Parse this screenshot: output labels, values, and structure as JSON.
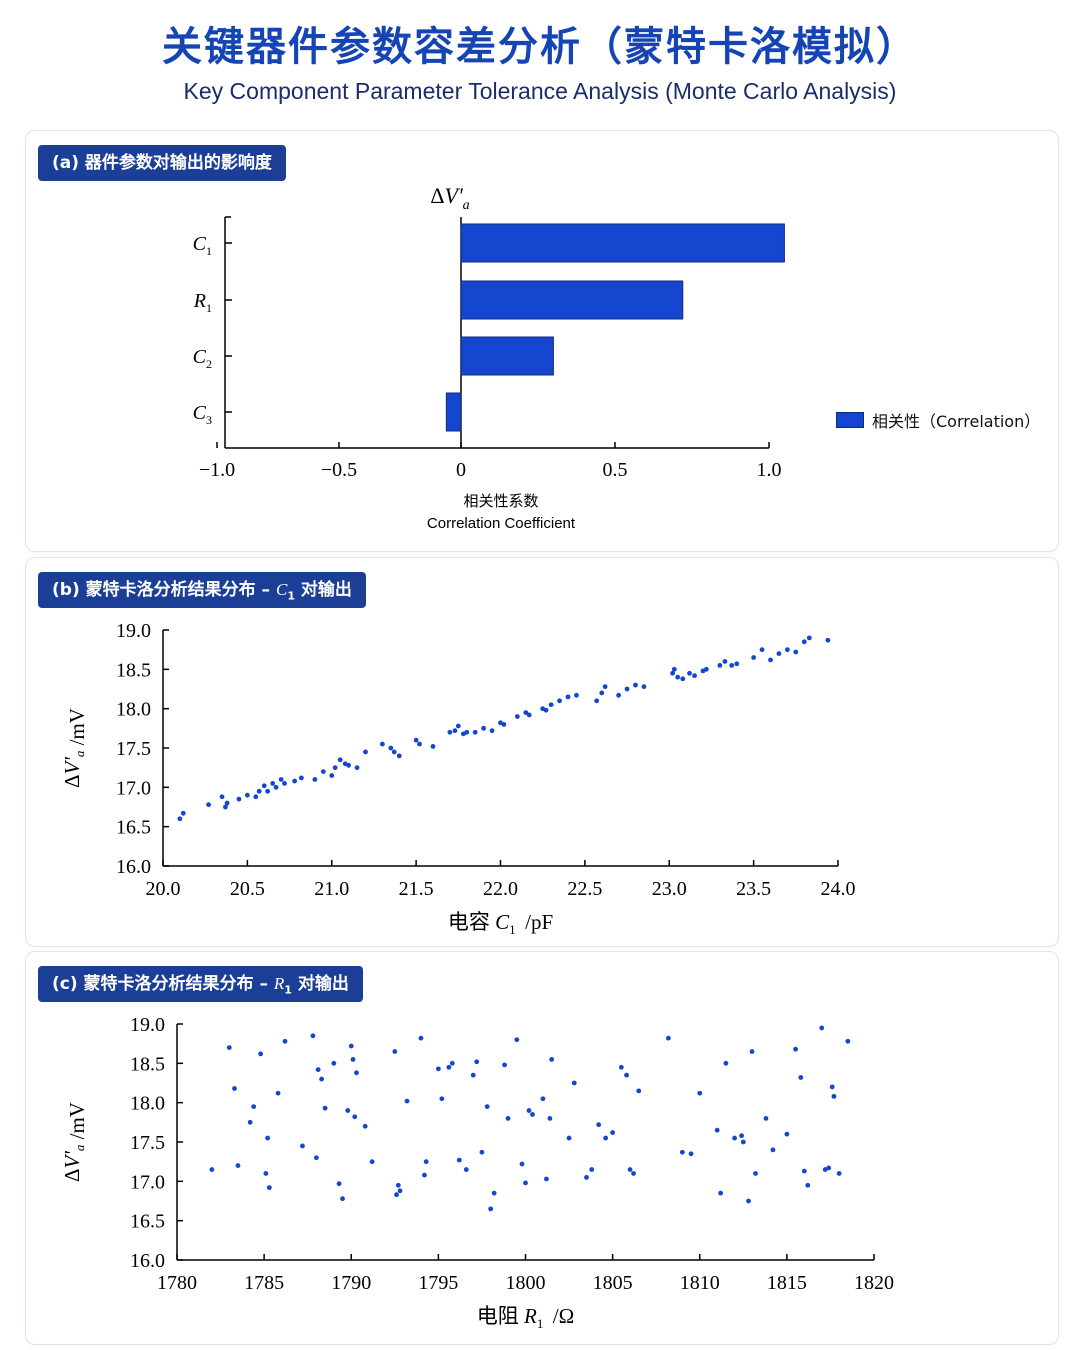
{
  "header": {
    "title": "关键器件参数容差分析（蒙特卡洛模拟）",
    "subtitle": "Key Component Parameter Tolerance Analysis (Monte Carlo Analysis)"
  },
  "panels": {
    "a": {
      "tag": "(a) 器件参数对输出的影响度",
      "legend": "相关性（Correlation）"
    },
    "b": {
      "tag_prefix": "(b) 蒙特卡洛分析结果分布 – ",
      "tag_sym": "C",
      "tag_sub": "1",
      "tag_suffix": " 对输出"
    },
    "c": {
      "tag_prefix": "(c) 蒙特卡洛分析结果分布 – ",
      "tag_sym": "R",
      "tag_sub": "1",
      "tag_suffix": " 对输出"
    }
  },
  "colors": {
    "accent": "#1544b5",
    "tag_bg": "#1b3f96",
    "bar": "#1446cf",
    "point": "#1446cf"
  },
  "chart_data": [
    {
      "type": "bar",
      "orientation": "horizontal",
      "title": "ΔV'a",
      "categories": [
        "C1",
        "R1",
        "C2",
        "C3"
      ],
      "values": [
        1.05,
        0.72,
        0.3,
        -0.06
      ],
      "series": [
        {
          "name": "相关性（Correlation）",
          "values": [
            1.05,
            0.72,
            0.3,
            -0.06
          ]
        }
      ],
      "xlabel": "相关性系数",
      "xlabel_en": "Correlation Coefficient",
      "ylabel": "",
      "xlim": [
        -1.0,
        1.0
      ],
      "xticks": [
        "−1.0",
        "−0.5",
        "0",
        "0.5",
        "1.0"
      ],
      "legend": "right",
      "grid": false
    },
    {
      "type": "scatter",
      "xlabel": "电容 C1 /pF",
      "ylabel": "ΔV'a /mV",
      "xlim": [
        20.0,
        24.0
      ],
      "ylim": [
        16.0,
        19.0
      ],
      "xticks": [
        "20.0",
        "20.5",
        "21.0",
        "21.5",
        "22.0",
        "22.5",
        "23.0",
        "23.5",
        "24.0"
      ],
      "yticks": [
        "16.0",
        "16.5",
        "17.0",
        "17.5",
        "18.0",
        "18.5",
        "19.0"
      ],
      "grid": false,
      "x": [
        20.1,
        20.12,
        20.27,
        20.35,
        20.37,
        20.38,
        20.45,
        20.5,
        20.55,
        20.57,
        20.6,
        20.62,
        20.65,
        20.67,
        20.7,
        20.72,
        20.78,
        20.82,
        20.9,
        20.95,
        21.0,
        21.02,
        21.05,
        21.08,
        21.1,
        21.15,
        21.2,
        21.3,
        21.35,
        21.37,
        21.4,
        21.5,
        21.52,
        21.6,
        21.7,
        21.73,
        21.75,
        21.78,
        21.8,
        21.85,
        21.9,
        21.95,
        22.0,
        22.02,
        22.1,
        22.15,
        22.17,
        22.25,
        22.27,
        22.3,
        22.35,
        22.4,
        22.45,
        22.57,
        22.6,
        22.62,
        22.7,
        22.75,
        22.8,
        22.85,
        23.02,
        23.03,
        23.05,
        23.08,
        23.12,
        23.15,
        23.2,
        23.22,
        23.3,
        23.33,
        23.37,
        23.4,
        23.5,
        23.55,
        23.6,
        23.65,
        23.7,
        23.75,
        23.8,
        23.83,
        23.94
      ],
      "y": [
        16.6,
        16.67,
        16.78,
        16.88,
        16.75,
        16.8,
        16.85,
        16.9,
        16.88,
        16.95,
        17.02,
        16.95,
        17.05,
        17.0,
        17.1,
        17.05,
        17.08,
        17.12,
        17.1,
        17.2,
        17.15,
        17.25,
        17.35,
        17.3,
        17.28,
        17.25,
        17.45,
        17.55,
        17.5,
        17.45,
        17.4,
        17.6,
        17.55,
        17.52,
        17.7,
        17.72,
        17.78,
        17.68,
        17.7,
        17.7,
        17.75,
        17.72,
        17.82,
        17.8,
        17.9,
        17.95,
        17.92,
        18.0,
        17.98,
        18.05,
        18.1,
        18.15,
        18.17,
        18.1,
        18.2,
        18.28,
        18.17,
        18.25,
        18.3,
        18.28,
        18.45,
        18.5,
        18.4,
        18.38,
        18.45,
        18.42,
        18.48,
        18.5,
        18.55,
        18.6,
        18.55,
        18.57,
        18.65,
        18.75,
        18.62,
        18.7,
        18.75,
        18.72,
        18.85,
        18.9,
        18.87
      ]
    },
    {
      "type": "scatter",
      "xlabel": "电阻 R1 /Ω",
      "ylabel": "ΔV'a /mV",
      "xlim": [
        1780,
        1820
      ],
      "ylim": [
        16.0,
        19.0
      ],
      "xticks": [
        "1780",
        "1785",
        "1790",
        "1795",
        "1800",
        "1805",
        "1810",
        "1815",
        "1820"
      ],
      "yticks": [
        "16.0",
        "16.5",
        "17.0",
        "17.5",
        "18.0",
        "18.5",
        "19.0"
      ],
      "grid": false,
      "x": [
        1782.0,
        1783.0,
        1783.3,
        1783.5,
        1784.2,
        1784.4,
        1784.8,
        1785.1,
        1785.2,
        1785.3,
        1785.8,
        1786.2,
        1787.2,
        1787.8,
        1788.0,
        1788.1,
        1788.3,
        1788.5,
        1789.0,
        1789.3,
        1789.5,
        1789.8,
        1790.0,
        1790.1,
        1790.2,
        1790.3,
        1790.8,
        1791.2,
        1792.5,
        1792.6,
        1792.7,
        1792.8,
        1793.2,
        1794.0,
        1794.2,
        1794.3,
        1795.0,
        1795.2,
        1795.6,
        1795.8,
        1796.2,
        1796.6,
        1797.0,
        1797.2,
        1797.5,
        1797.8,
        1798.0,
        1798.2,
        1798.8,
        1799.0,
        1799.5,
        1799.8,
        1800.0,
        1800.2,
        1800.4,
        1801.0,
        1801.2,
        1801.4,
        1801.5,
        1802.5,
        1802.8,
        1803.5,
        1803.8,
        1804.2,
        1804.6,
        1805.0,
        1805.5,
        1805.8,
        1806.0,
        1806.2,
        1806.5,
        1808.2,
        1809.0,
        1809.5,
        1810.0,
        1811.0,
        1811.2,
        1811.5,
        1812.0,
        1812.5,
        1812.8,
        1813.0,
        1813.2,
        1813.8,
        1814.2,
        1815.0,
        1815.5,
        1815.8,
        1816.0,
        1816.2,
        1817.0,
        1817.4,
        1817.6,
        1817.7,
        1818.0,
        1818.5,
        1817.2,
        1812.4
      ],
      "y": [
        17.15,
        18.7,
        18.18,
        17.2,
        17.75,
        17.95,
        18.62,
        17.1,
        17.55,
        16.92,
        18.12,
        18.78,
        17.45,
        18.85,
        17.3,
        18.42,
        18.3,
        17.93,
        18.5,
        16.97,
        16.78,
        17.9,
        18.72,
        18.55,
        17.82,
        18.38,
        17.7,
        17.25,
        18.65,
        16.83,
        16.95,
        16.88,
        18.02,
        18.82,
        17.08,
        17.25,
        18.43,
        18.05,
        18.45,
        18.5,
        17.27,
        17.15,
        18.35,
        18.52,
        17.37,
        17.95,
        16.65,
        16.85,
        18.48,
        17.8,
        18.8,
        17.22,
        16.98,
        17.9,
        17.85,
        18.05,
        17.03,
        17.8,
        18.55,
        17.55,
        18.25,
        17.05,
        17.15,
        17.72,
        17.55,
        17.62,
        18.45,
        18.35,
        17.15,
        17.1,
        18.15,
        18.82,
        17.37,
        17.35,
        18.12,
        17.65,
        16.85,
        18.5,
        17.55,
        17.5,
        16.75,
        18.65,
        17.1,
        17.8,
        17.4,
        17.6,
        18.68,
        18.32,
        17.13,
        16.95,
        18.95,
        17.17,
        18.2,
        18.08,
        17.1,
        18.78,
        17.15,
        17.58
      ]
    }
  ]
}
